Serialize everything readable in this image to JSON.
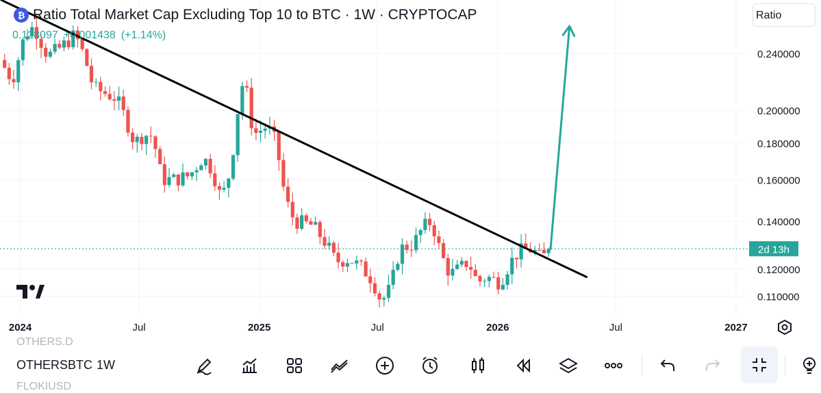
{
  "header": {
    "title": "Ratio Total Market Cap Excluding Top 10 to BTC · 1W · CRYPTOCAP",
    "price": "0.128097",
    "change": "+0.001438",
    "change_pct": "(+1.14%)",
    "scale_button": "Ratio",
    "logo_icon": "cryptocap-icon"
  },
  "colors": {
    "up": "#26a69a",
    "down": "#ef5350",
    "trendline": "#000000",
    "arrow": "#26a69a",
    "price_line": "#26a69a",
    "grid": "#f0f3fa"
  },
  "chart_data": {
    "type": "candlestick",
    "title": "Ratio Total Market Cap Excluding Top 10 to BTC · 1W · CRYPTOCAP",
    "y_scale": "log",
    "yticks": [
      0.11,
      0.12,
      0.14,
      0.16,
      0.18,
      0.2,
      0.24
    ],
    "ytick_labels": [
      "0.110000",
      "0.120000",
      "0.140000",
      "0.160000",
      "0.180000",
      "0.200000",
      "0.240000"
    ],
    "ylim": [
      0.104,
      0.285
    ],
    "xlim": [
      "2023-12-01",
      "2027-01-20"
    ],
    "xticks": [
      {
        "date": "2024-01-01",
        "label": "2024",
        "bold": true
      },
      {
        "date": "2024-07-01",
        "label": "Jul",
        "bold": false
      },
      {
        "date": "2025-01-01",
        "label": "2025",
        "bold": true
      },
      {
        "date": "2025-07-01",
        "label": "Jul",
        "bold": false
      },
      {
        "date": "2026-01-01",
        "label": "2026",
        "bold": true
      },
      {
        "date": "2026-07-01",
        "label": "Jul",
        "bold": false
      },
      {
        "date": "2027-01-01",
        "label": "2027",
        "bold": true
      }
    ],
    "countdown_label": "2d 13h",
    "last_close": 0.128097,
    "close_path": [
      [
        "2023-12-01",
        0.235
      ],
      [
        "2023-12-20",
        0.22
      ],
      [
        "2024-01-08",
        0.255
      ],
      [
        "2024-01-22",
        0.262
      ],
      [
        "2024-02-12",
        0.238
      ],
      [
        "2024-03-04",
        0.245
      ],
      [
        "2024-03-25",
        0.255
      ],
      [
        "2024-04-08",
        0.238
      ],
      [
        "2024-04-22",
        0.215
      ],
      [
        "2024-05-06",
        0.212
      ],
      [
        "2024-05-27",
        0.208
      ],
      [
        "2024-06-10",
        0.195
      ],
      [
        "2024-06-24",
        0.18
      ],
      [
        "2024-07-08",
        0.185
      ],
      [
        "2024-07-22",
        0.184
      ],
      [
        "2024-08-05",
        0.16
      ],
      [
        "2024-08-26",
        0.16
      ],
      [
        "2024-09-16",
        0.162
      ],
      [
        "2024-10-07",
        0.172
      ],
      [
        "2024-10-21",
        0.165
      ],
      [
        "2024-11-04",
        0.15
      ],
      [
        "2024-11-18",
        0.165
      ],
      [
        "2024-12-02",
        0.21
      ],
      [
        "2024-12-09",
        0.222
      ],
      [
        "2024-12-23",
        0.185
      ],
      [
        "2025-01-13",
        0.19
      ],
      [
        "2025-01-27",
        0.18
      ],
      [
        "2025-02-10",
        0.15
      ],
      [
        "2025-02-24",
        0.14
      ],
      [
        "2025-03-24",
        0.138
      ],
      [
        "2025-04-14",
        0.13
      ],
      [
        "2025-04-28",
        0.123
      ],
      [
        "2025-05-19",
        0.124
      ],
      [
        "2025-06-09",
        0.12
      ],
      [
        "2025-06-23",
        0.116
      ],
      [
        "2025-07-07",
        0.108
      ],
      [
        "2025-07-21",
        0.113
      ],
      [
        "2025-08-04",
        0.128
      ],
      [
        "2025-08-25",
        0.13
      ],
      [
        "2025-09-08",
        0.137
      ],
      [
        "2025-09-22",
        0.14
      ],
      [
        "2025-10-06",
        0.126
      ],
      [
        "2025-10-20",
        0.118
      ],
      [
        "2025-11-03",
        0.12
      ],
      [
        "2025-11-17",
        0.123
      ],
      [
        "2025-12-01",
        0.115
      ],
      [
        "2025-12-15",
        0.117
      ],
      [
        "2026-01-05",
        0.115
      ],
      [
        "2026-01-19",
        0.122
      ],
      [
        "2026-02-02",
        0.127
      ],
      [
        "2026-02-23",
        0.128
      ],
      [
        "2026-03-09",
        0.124
      ],
      [
        "2026-03-23",
        0.128
      ]
    ],
    "trendline": {
      "start": [
        "2023-12-03",
        0.285
      ],
      "end": [
        "2026-05-17",
        0.117
      ]
    },
    "projection_arrow": {
      "start": [
        "2026-03-23",
        0.128
      ],
      "end": [
        "2026-04-21",
        0.262
      ]
    }
  },
  "toolbar": {
    "symbols_above": "OTHERS.D",
    "symbol": "OTHERSBTC",
    "symbols_below": "FLOKIUSD",
    "interval": "1W",
    "icons": [
      "draw-icon",
      "indicators-icon",
      "layout-icon",
      "compare-icon",
      "add-icon",
      "alert-icon",
      "candles-icon",
      "replay-icon",
      "layers-icon",
      "more-icon",
      "undo-icon",
      "redo-icon",
      "fullscreen-exit-icon",
      "idea-icon"
    ]
  }
}
